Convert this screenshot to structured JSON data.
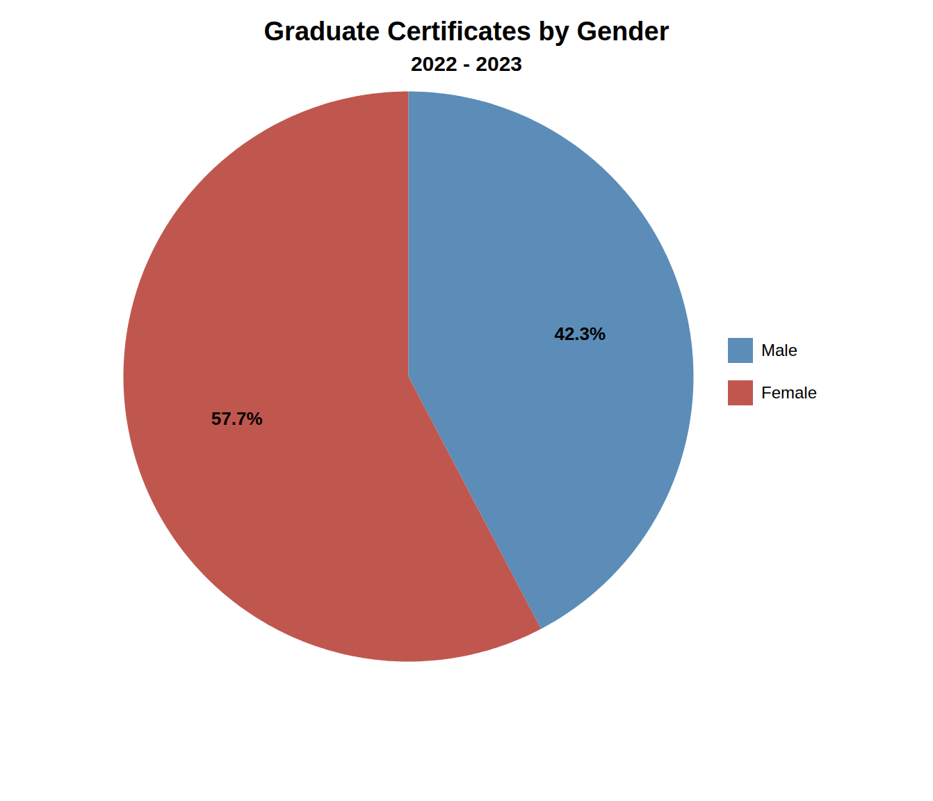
{
  "chart_data": {
    "type": "pie",
    "title": "Graduate Certificates by Gender",
    "subtitle": "2022 - 2023",
    "categories": [
      "Male",
      "Female"
    ],
    "values": [
      42.3,
      57.7
    ],
    "value_labels": [
      "42.3%",
      "57.7%"
    ],
    "colors": [
      "#5B8DB8",
      "#C0574E"
    ],
    "data_labels": true,
    "legend": "right"
  }
}
